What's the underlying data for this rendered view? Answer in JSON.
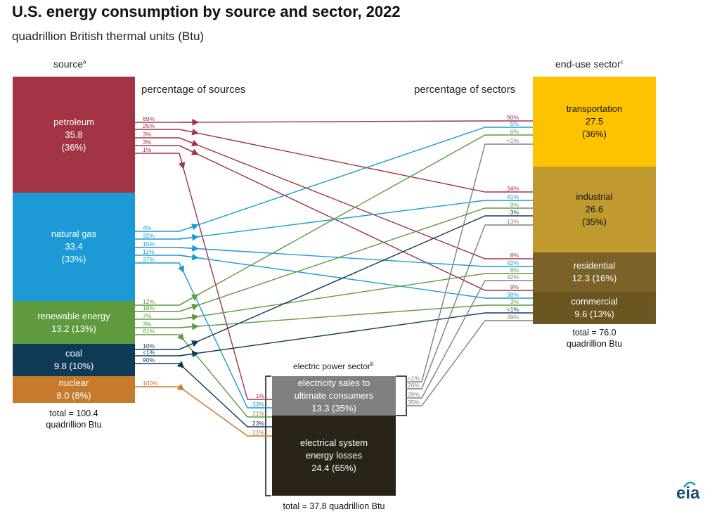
{
  "title": "U.S. energy consumption by source and sector, 2022",
  "subtitle": "quadrillion British thermal units (Btu)",
  "headers": {
    "source": "source",
    "source_sup": "a",
    "sector": "end-use sector",
    "sector_sup": "c",
    "pct_sources": "percentage of sources",
    "pct_sectors": "percentage of sectors",
    "electric": "electric power sector",
    "electric_sup": "b"
  },
  "colors": {
    "petroleum": "#a23446",
    "natural_gas": "#1b9ad6",
    "renewable": "#5e9b3e",
    "coal": "#0f3b57",
    "nuclear": "#c67a2c",
    "transportation": "#fec300",
    "industrial": "#c09a2f",
    "residential": "#7a6229",
    "commercial": "#6b5520",
    "electricity_sales": "#808080",
    "losses": "#2a2418"
  },
  "sources": [
    {
      "key": "petroleum",
      "name": "petroleum",
      "value": "35.8",
      "share": "(36%)"
    },
    {
      "key": "natural_gas",
      "name": "natural gas",
      "value": "33.4",
      "share": "(33%)"
    },
    {
      "key": "renewable",
      "name": "renewable energy",
      "value": "13.2 (13%)"
    },
    {
      "key": "coal",
      "name": "coal",
      "value": "9.8 (10%)"
    },
    {
      "key": "nuclear",
      "name": "nuclear",
      "value": "8.0 (8%)"
    }
  ],
  "source_total": {
    "line1": "total = 100.4",
    "line2": "quadrillion Btu"
  },
  "sectors": [
    {
      "key": "transportation",
      "name": "transportation",
      "value": "27.5",
      "share": "(36%)"
    },
    {
      "key": "industrial",
      "name": "industrial",
      "value": "26.6",
      "share": "(35%)"
    },
    {
      "key": "residential",
      "name": "residential",
      "value": "12.3 (16%)"
    },
    {
      "key": "commercial",
      "name": "commercial",
      "value": "9.6 (13%)"
    }
  ],
  "sector_total": {
    "line1": "total = 76.0",
    "line2": "quadrillion Btu"
  },
  "electric": {
    "sales_line1": "electricity sales to",
    "sales_line2": "ultimate consumers",
    "sales_value": "13.3 (35%)",
    "loss_line1": "electrical system",
    "loss_line2": "energy losses",
    "loss_value": "24.4 (65%)",
    "total": "total = 37.8 quadrillion Btu"
  },
  "flows": [
    {
      "from": "petroleum",
      "to": "transportation",
      "src_pct": "69%",
      "dst_pct": "90%"
    },
    {
      "from": "petroleum",
      "to": "industrial",
      "src_pct": "25%",
      "dst_pct": "34%"
    },
    {
      "from": "petroleum",
      "to": "residential",
      "src_pct": "3%",
      "dst_pct": "8%"
    },
    {
      "from": "petroleum",
      "to": "commercial",
      "src_pct": "3%",
      "dst_pct": "9%"
    },
    {
      "from": "petroleum",
      "to": "electric",
      "src_pct": "1%",
      "dst_pct": "1%"
    },
    {
      "from": "natural_gas",
      "to": "transportation",
      "src_pct": "4%",
      "dst_pct": "5%"
    },
    {
      "from": "natural_gas",
      "to": "industrial",
      "src_pct": "32%",
      "dst_pct": "41%"
    },
    {
      "from": "natural_gas",
      "to": "residential",
      "src_pct": "15%",
      "dst_pct": "42%"
    },
    {
      "from": "natural_gas",
      "to": "commercial",
      "src_pct": "11%",
      "dst_pct": "38%"
    },
    {
      "from": "natural_gas",
      "to": "electric",
      "src_pct": "37%",
      "dst_pct": "33%"
    },
    {
      "from": "renewable",
      "to": "transportation",
      "src_pct": "12%",
      "dst_pct": "6%"
    },
    {
      "from": "renewable",
      "to": "industrial",
      "src_pct": "18%",
      "dst_pct": "9%"
    },
    {
      "from": "renewable",
      "to": "residential",
      "src_pct": "7%",
      "dst_pct": "8%"
    },
    {
      "from": "renewable",
      "to": "commercial",
      "src_pct": "3%",
      "dst_pct": "3%"
    },
    {
      "from": "renewable",
      "to": "electric",
      "src_pct": "61%",
      "dst_pct": "21%"
    },
    {
      "from": "coal",
      "to": "industrial",
      "src_pct": "10%",
      "dst_pct": "3%"
    },
    {
      "from": "coal",
      "to": "commercial",
      "src_pct": "<1%",
      "dst_pct": "<1%"
    },
    {
      "from": "coal",
      "to": "electric",
      "src_pct": "90%",
      "dst_pct": "23%"
    },
    {
      "from": "nuclear",
      "to": "electric",
      "src_pct": "100%",
      "dst_pct": "21%"
    },
    {
      "from": "electric",
      "to": "transportation",
      "src_pct": "<1%",
      "dst_pct": "<1%"
    },
    {
      "from": "electric",
      "to": "industrial",
      "src_pct": "26%",
      "dst_pct": "13%"
    },
    {
      "from": "electric",
      "to": "residential",
      "src_pct": "39%",
      "dst_pct": "42%"
    },
    {
      "from": "electric",
      "to": "commercial",
      "src_pct": "35%",
      "dst_pct": "49%"
    }
  ],
  "logo": "eia"
}
